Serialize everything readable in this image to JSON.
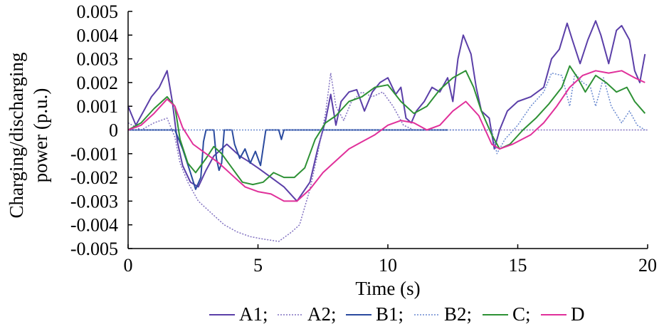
{
  "chart_data": {
    "type": "line",
    "title": "",
    "xlabel": "Time (s)",
    "ylabel": "Charging/discharging power (p.u.)",
    "xlim": [
      0,
      20
    ],
    "ylim": [
      -0.005,
      0.005
    ],
    "x_ticks": [
      "0",
      "5",
      "10",
      "15",
      "20"
    ],
    "y_ticks": [
      "0.005",
      "0.004",
      "0.003",
      "0.002",
      "0.001",
      "0",
      "-0.001",
      "-0.002",
      "-0.003",
      "-0.004",
      "-0.005"
    ],
    "legend_position": "bottom",
    "grid": false,
    "series": [
      {
        "name": "A1;",
        "color": "#5b3fa8",
        "dash": "solid",
        "points": [
          [
            0,
            0.001
          ],
          [
            0.3,
            0.0002
          ],
          [
            0.6,
            0.0008
          ],
          [
            0.9,
            0.0014
          ],
          [
            1.2,
            0.0018
          ],
          [
            1.5,
            0.0025
          ],
          [
            1.7,
            0.0012
          ],
          [
            1.9,
            -0.0005
          ],
          [
            2.1,
            -0.0015
          ],
          [
            2.4,
            -0.0022
          ],
          [
            2.7,
            -0.0024
          ],
          [
            3.0,
            -0.0017
          ],
          [
            3.3,
            -0.0011
          ],
          [
            3.6,
            -0.0008
          ],
          [
            3.8,
            -0.0006
          ],
          [
            4.0,
            -0.0008
          ],
          [
            4.3,
            -0.0011
          ],
          [
            4.6,
            -0.0013
          ],
          [
            5.0,
            -0.0016
          ],
          [
            5.5,
            -0.002
          ],
          [
            6.0,
            -0.0024
          ],
          [
            6.5,
            -0.003
          ],
          [
            7.0,
            -0.0022
          ],
          [
            7.3,
            -0.0008
          ],
          [
            7.6,
            0.0004
          ],
          [
            7.8,
            0.0015
          ],
          [
            8.0,
            0.0002
          ],
          [
            8.2,
            0.0012
          ],
          [
            8.5,
            0.0016
          ],
          [
            8.8,
            0.0017
          ],
          [
            9.1,
            0.0008
          ],
          [
            9.4,
            0.0016
          ],
          [
            9.7,
            0.002
          ],
          [
            10.0,
            0.0022
          ],
          [
            10.3,
            0.0015
          ],
          [
            10.5,
            0.0018
          ],
          [
            10.7,
            0.0005
          ],
          [
            10.9,
            0.0003
          ],
          [
            11.1,
            0.0008
          ],
          [
            11.4,
            0.0012
          ],
          [
            11.7,
            0.0018
          ],
          [
            12.0,
            0.0016
          ],
          [
            12.3,
            0.0022
          ],
          [
            12.5,
            0.0012
          ],
          [
            12.7,
            0.003
          ],
          [
            12.9,
            0.004
          ],
          [
            13.2,
            0.0032
          ],
          [
            13.4,
            0.0018
          ],
          [
            13.6,
            0.0008
          ],
          [
            13.9,
            0.0005
          ],
          [
            14.1,
            -0.0008
          ],
          [
            14.3,
            0.0
          ],
          [
            14.6,
            0.0008
          ],
          [
            15.0,
            0.0012
          ],
          [
            15.5,
            0.0014
          ],
          [
            16.0,
            0.0018
          ],
          [
            16.3,
            0.003
          ],
          [
            16.6,
            0.0034
          ],
          [
            16.9,
            0.0045
          ],
          [
            17.1,
            0.0038
          ],
          [
            17.4,
            0.0028
          ],
          [
            17.7,
            0.0038
          ],
          [
            18.0,
            0.0046
          ],
          [
            18.2,
            0.004
          ],
          [
            18.5,
            0.0028
          ],
          [
            18.8,
            0.0042
          ],
          [
            19.0,
            0.0044
          ],
          [
            19.3,
            0.0038
          ],
          [
            19.5,
            0.0025
          ],
          [
            19.7,
            0.002
          ],
          [
            19.9,
            0.0032
          ]
        ]
      },
      {
        "name": "A2;",
        "color": "#8070c0",
        "dash": "dotted",
        "points": [
          [
            0,
            0.0003
          ],
          [
            0.5,
            0.0
          ],
          [
            1.0,
            0.0003
          ],
          [
            1.5,
            0.0005
          ],
          [
            1.8,
            -0.0003
          ],
          [
            2.0,
            -0.0014
          ],
          [
            2.3,
            -0.0022
          ],
          [
            2.7,
            -0.003
          ],
          [
            3.2,
            -0.0035
          ],
          [
            3.7,
            -0.004
          ],
          [
            4.2,
            -0.0043
          ],
          [
            4.7,
            -0.0045
          ],
          [
            5.2,
            -0.0046
          ],
          [
            5.8,
            -0.0047
          ],
          [
            6.3,
            -0.0043
          ],
          [
            6.6,
            -0.004
          ],
          [
            7.0,
            -0.0025
          ],
          [
            7.3,
            -0.001
          ],
          [
            7.6,
            0.0007
          ],
          [
            7.8,
            0.0024
          ],
          [
            8.0,
            0.001
          ],
          [
            8.3,
            0.0004
          ],
          [
            8.6,
            0.0012
          ],
          [
            9.0,
            0.0016
          ],
          [
            9.4,
            0.0014
          ],
          [
            9.8,
            0.0016
          ],
          [
            10.2,
            0.001
          ],
          [
            10.6,
            0.0002
          ],
          [
            11.0,
            0.0
          ],
          [
            12.0,
            0.0
          ],
          [
            13.0,
            0.0
          ],
          [
            14.0,
            0.0
          ],
          [
            15.0,
            0.0
          ],
          [
            16.0,
            0.0
          ],
          [
            17.0,
            0.0
          ],
          [
            18.0,
            0.0
          ],
          [
            19.0,
            0.0
          ],
          [
            20.0,
            0.0
          ]
        ]
      },
      {
        "name": "B1;",
        "color": "#2a4a9e",
        "dash": "solid",
        "points": [
          [
            0,
            0.0
          ],
          [
            1.0,
            0.0
          ],
          [
            1.8,
            0.0
          ],
          [
            2.1,
            -0.0008
          ],
          [
            2.4,
            -0.0018
          ],
          [
            2.6,
            -0.0025
          ],
          [
            2.8,
            -0.002
          ],
          [
            2.9,
            -0.0005
          ],
          [
            3.0,
            0.0
          ],
          [
            3.3,
            0.0
          ],
          [
            3.4,
            -0.0012
          ],
          [
            3.5,
            -0.0017
          ],
          [
            3.6,
            -0.0014
          ],
          [
            3.7,
            0.0
          ],
          [
            4.0,
            0.0
          ],
          [
            4.1,
            -0.0006
          ],
          [
            4.3,
            -0.0012
          ],
          [
            4.5,
            -0.0008
          ],
          [
            4.7,
            -0.0014
          ],
          [
            4.9,
            -0.0009
          ],
          [
            5.1,
            -0.0015
          ],
          [
            5.3,
            0.0
          ],
          [
            5.8,
            0.0
          ],
          [
            5.9,
            -0.0004
          ],
          [
            6.0,
            0.0
          ],
          [
            7.0,
            0.0
          ],
          [
            8.0,
            0.0
          ],
          [
            9.0,
            0.0
          ],
          [
            10.0,
            0.0
          ],
          [
            11.0,
            0.0
          ],
          [
            12.3,
            0.0
          ]
        ]
      },
      {
        "name": "B2;",
        "color": "#6a8ad0",
        "dash": "dotted",
        "points": [
          [
            0,
            0.0
          ],
          [
            6.5,
            0.0
          ],
          [
            7.2,
            0.0
          ],
          [
            8.0,
            0.0
          ],
          [
            9.0,
            0.0
          ],
          [
            10.0,
            0.0
          ],
          [
            11.0,
            0.0
          ],
          [
            12.0,
            0.0
          ],
          [
            13.0,
            0.0
          ],
          [
            14.0,
            0.0
          ],
          [
            14.2,
            -0.001
          ],
          [
            14.5,
            -0.0004
          ],
          [
            15.0,
            0.0002
          ],
          [
            15.5,
            0.001
          ],
          [
            16.0,
            0.0016
          ],
          [
            16.3,
            0.0024
          ],
          [
            16.7,
            0.0023
          ],
          [
            17.0,
            0.001
          ],
          [
            17.2,
            0.0024
          ],
          [
            17.5,
            0.002
          ],
          [
            17.8,
            0.0018
          ],
          [
            18.0,
            0.001
          ],
          [
            18.3,
            0.0022
          ],
          [
            18.6,
            0.001
          ],
          [
            19.0,
            0.0003
          ],
          [
            19.3,
            0.0008
          ],
          [
            19.6,
            0.0002
          ],
          [
            19.9,
            0.0
          ]
        ]
      },
      {
        "name": "C;",
        "color": "#2e9135",
        "dash": "solid",
        "points": [
          [
            0,
            0.0
          ],
          [
            0.5,
            0.0003
          ],
          [
            1.0,
            0.0009
          ],
          [
            1.5,
            0.0014
          ],
          [
            1.8,
            0.001
          ],
          [
            2.0,
            -0.0004
          ],
          [
            2.3,
            -0.0014
          ],
          [
            2.6,
            -0.0018
          ],
          [
            3.0,
            -0.0012
          ],
          [
            3.3,
            -0.0007
          ],
          [
            3.6,
            -0.001
          ],
          [
            4.0,
            -0.0016
          ],
          [
            4.4,
            -0.0022
          ],
          [
            4.8,
            -0.0023
          ],
          [
            5.2,
            -0.0022
          ],
          [
            5.6,
            -0.0018
          ],
          [
            6.0,
            -0.002
          ],
          [
            6.4,
            -0.002
          ],
          [
            6.8,
            -0.0016
          ],
          [
            7.2,
            -0.0004
          ],
          [
            7.6,
            0.0003
          ],
          [
            8.0,
            0.0006
          ],
          [
            8.5,
            0.0012
          ],
          [
            9.0,
            0.0014
          ],
          [
            9.5,
            0.0018
          ],
          [
            10.0,
            0.0019
          ],
          [
            10.5,
            0.0012
          ],
          [
            11.0,
            0.0007
          ],
          [
            11.5,
            0.001
          ],
          [
            12.0,
            0.0017
          ],
          [
            12.5,
            0.0022
          ],
          [
            13.0,
            0.0025
          ],
          [
            13.3,
            0.0018
          ],
          [
            13.6,
            0.0008
          ],
          [
            14.0,
            -0.0002
          ],
          [
            14.3,
            -0.0008
          ],
          [
            14.7,
            -0.0006
          ],
          [
            15.2,
            0.0
          ],
          [
            15.7,
            0.0005
          ],
          [
            16.2,
            0.0011
          ],
          [
            16.7,
            0.0018
          ],
          [
            17.0,
            0.0027
          ],
          [
            17.3,
            0.0022
          ],
          [
            17.6,
            0.0016
          ],
          [
            18.0,
            0.0023
          ],
          [
            18.4,
            0.002
          ],
          [
            18.8,
            0.0016
          ],
          [
            19.2,
            0.0018
          ],
          [
            19.5,
            0.0012
          ],
          [
            19.9,
            0.0007
          ]
        ]
      },
      {
        "name": "D",
        "color": "#e0309a",
        "dash": "solid",
        "points": [
          [
            0,
            0.0
          ],
          [
            0.5,
            0.0002
          ],
          [
            1.0,
            0.0007
          ],
          [
            1.5,
            0.0013
          ],
          [
            1.8,
            0.001
          ],
          [
            2.1,
            0.0001
          ],
          [
            2.5,
            -0.0006
          ],
          [
            3.0,
            -0.001
          ],
          [
            3.5,
            -0.0014
          ],
          [
            4.0,
            -0.0019
          ],
          [
            4.5,
            -0.0024
          ],
          [
            5.0,
            -0.0026
          ],
          [
            5.5,
            -0.0027
          ],
          [
            6.0,
            -0.003
          ],
          [
            6.5,
            -0.003
          ],
          [
            7.0,
            -0.0025
          ],
          [
            7.5,
            -0.0018
          ],
          [
            8.0,
            -0.0013
          ],
          [
            8.5,
            -0.0008
          ],
          [
            9.0,
            -0.0005
          ],
          [
            9.5,
            -0.0002
          ],
          [
            10.0,
            0.0002
          ],
          [
            10.5,
            0.0004
          ],
          [
            11.0,
            0.0003
          ],
          [
            11.5,
            0.0
          ],
          [
            12.0,
            0.0002
          ],
          [
            12.5,
            0.0008
          ],
          [
            13.0,
            0.0012
          ],
          [
            13.5,
            0.0006
          ],
          [
            14.0,
            -0.0006
          ],
          [
            14.3,
            -0.0008
          ],
          [
            14.8,
            -0.0006
          ],
          [
            15.5,
            -0.0002
          ],
          [
            16.0,
            0.0003
          ],
          [
            16.5,
            0.001
          ],
          [
            17.0,
            0.0018
          ],
          [
            17.5,
            0.0023
          ],
          [
            18.0,
            0.0025
          ],
          [
            18.5,
            0.0024
          ],
          [
            19.0,
            0.0025
          ],
          [
            19.5,
            0.0022
          ],
          [
            19.9,
            0.002
          ]
        ]
      }
    ]
  }
}
